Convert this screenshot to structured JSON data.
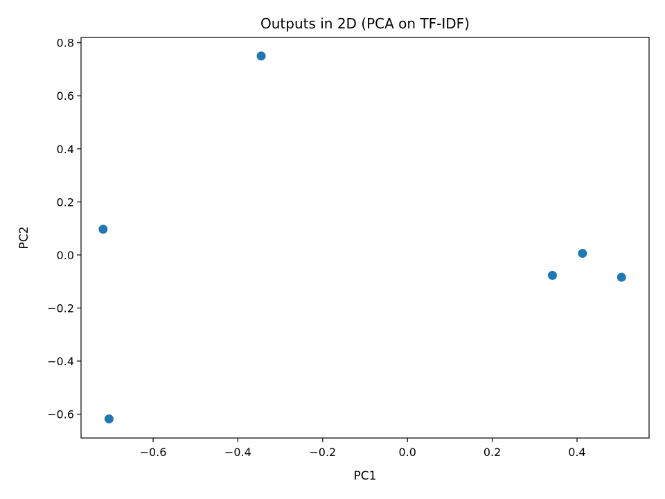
{
  "chart_data": {
    "type": "scatter",
    "title": "Outputs in 2D (PCA on TF-IDF)",
    "xlabel": "PC1",
    "ylabel": "PC2",
    "xlim": [
      -0.77,
      0.57
    ],
    "ylim": [
      -0.69,
      0.82
    ],
    "xticks": [
      -0.6,
      -0.4,
      -0.2,
      0.0,
      0.2,
      0.4
    ],
    "xtick_labels": [
      "−0.6",
      "−0.4",
      "−0.2",
      "0.0",
      "0.2",
      "0.4"
    ],
    "yticks": [
      -0.6,
      -0.4,
      -0.2,
      0.0,
      0.2,
      0.4,
      0.6,
      0.8
    ],
    "ytick_labels": [
      "−0.6",
      "−0.4",
      "−0.2",
      "0.0",
      "0.2",
      "0.4",
      "0.6",
      "0.8"
    ],
    "grid": false,
    "marker_color": "#1f77b4",
    "points": [
      {
        "x": -0.345,
        "y": 0.75
      },
      {
        "x": -0.718,
        "y": 0.097
      },
      {
        "x": -0.704,
        "y": -0.618
      },
      {
        "x": 0.342,
        "y": -0.077
      },
      {
        "x": 0.413,
        "y": 0.006
      },
      {
        "x": 0.505,
        "y": -0.084
      }
    ]
  }
}
